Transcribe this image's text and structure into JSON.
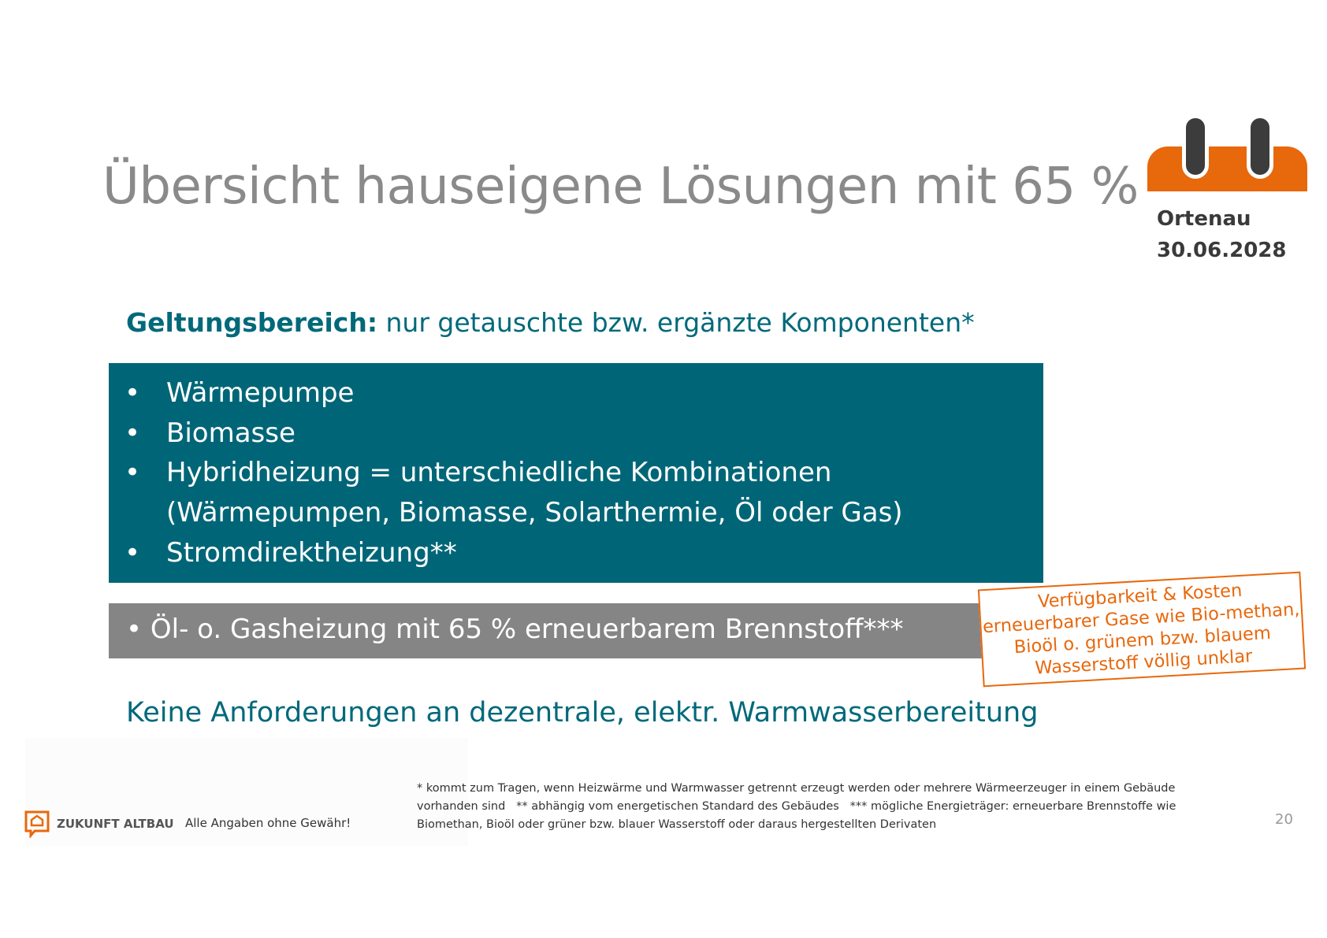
{
  "title": "Übersicht hauseigene Lösungen mit 65 %",
  "calendar": {
    "icon": "calendar-icon",
    "region": "Ortenau",
    "date": "30.06.2028",
    "color": "#e8680c"
  },
  "scope": {
    "label": "Geltungsbereich:",
    "text": " nur getauschte bzw. ergänzte Komponenten*"
  },
  "teal_box": {
    "color": "#006677",
    "items": [
      "Wärmepumpe",
      "Biomasse",
      "Hybridheizung = unterschiedliche Kombinationen",
      "(Wärmepumpen, Biomasse, Solarthermie, Öl oder Gas)",
      "Stromdirektheizung**"
    ]
  },
  "gray_box": {
    "color": "#858585",
    "text": "• Öl- o. Gasheizung mit 65 % erneuerbarem Brennstoff***"
  },
  "note": "Verfügbarkeit & Kosten erneuerbarer Gase wie Bio-methan, Bioöl o. grünem bzw. blauem Wasserstoff völlig unklar",
  "no_requirements": "Keine Anforderungen an dezentrale, elektr. Warmwasserbereitung",
  "footer": {
    "logo": "ZUKUNFT ALTBAU",
    "disclaimer": "Alle Angaben ohne Gewähr!",
    "footnotes": [
      "* kommt zum Tragen, wenn Heizwärme und Warmwasser getrennt erzeugt werden oder mehrere Wärmeerzeuger in einem Gebäude",
      "vorhanden sind   ** abhängig vom energetischen Standard des Gebäudes   *** mögliche Energieträger: erneuerbare Brennstoffe wie",
      "Biomethan, Bioöl oder grüner bzw. blauer Wasserstoff oder daraus hergestellten Derivaten"
    ],
    "page_number": "20"
  }
}
